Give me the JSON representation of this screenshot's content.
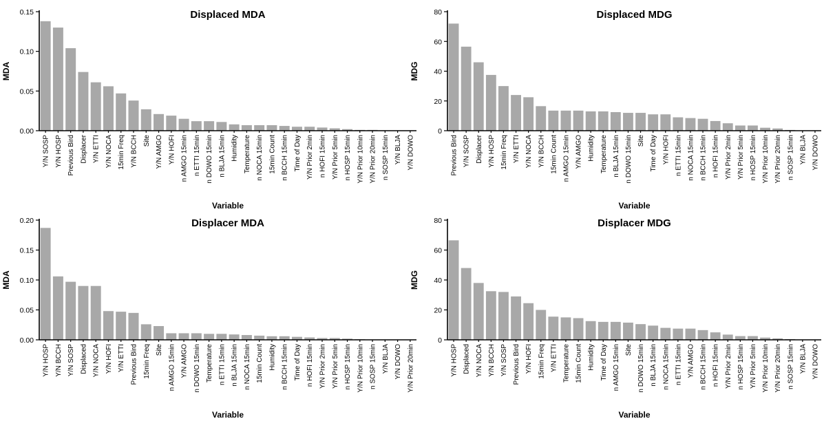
{
  "chart_data": [
    {
      "type": "bar",
      "title": "Displaced MDA",
      "xlabel": "Variable",
      "ylabel": "MDA",
      "ylim": [
        0,
        0.15
      ],
      "yticks": [
        "0.00",
        "0.05",
        "0.10",
        "0.15"
      ],
      "bar_color": "#a8a8a8",
      "grid": false,
      "categories": [
        "Y/N SOSP",
        "Y/N HOSP",
        "Previous Bird",
        "Displacer",
        "Y/N ETTI",
        "Y/N NOCA",
        "15min Freq",
        "Y/N BCCH",
        "Site",
        "Y/N AMGO",
        "Y/N HOFI",
        "n AMGO 15min",
        "n ETTI 15min",
        "n DOWO 15min",
        "n BLJA 15min",
        "Humidity",
        "Temperature",
        "n NOCA 15min",
        "15min Count",
        "n BCCH 15min",
        "Time of Day",
        "Y/N Prior 2min",
        "n HOFI 15min",
        "Y/N Prior 5min",
        "n HOSP 15min",
        "Y/N Prior 10min",
        "Y/N Prior 20min",
        "n SOSP 15min",
        "Y/N BLJA",
        "Y/N DOWO"
      ],
      "values": [
        0.138,
        0.13,
        0.104,
        0.074,
        0.061,
        0.056,
        0.047,
        0.038,
        0.027,
        0.021,
        0.019,
        0.015,
        0.012,
        0.012,
        0.011,
        0.008,
        0.007,
        0.007,
        0.007,
        0.006,
        0.005,
        0.005,
        0.004,
        0.003,
        0.002,
        0.001,
        0.001,
        0.0005,
        0.0,
        0.0
      ]
    },
    {
      "type": "bar",
      "title": "Displaced MDG",
      "xlabel": "Variable",
      "ylabel": "MDG",
      "ylim": [
        0,
        80
      ],
      "yticks": [
        "0",
        "20",
        "40",
        "60",
        "80"
      ],
      "bar_color": "#a8a8a8",
      "grid": false,
      "categories": [
        "Previous Bird",
        "Y/N SOSP",
        "Displacer",
        "Y/N HOSP",
        "15min Freq",
        "Y/N ETTI",
        "Y/N NOCA",
        "Y/N BCCH",
        "15min Count",
        "n AMGO 15min",
        "Y/N AMGO",
        "Humidity",
        "Temperature",
        "n BLJA 15min",
        "n DOWO 15min",
        "Site",
        "Time of Day",
        "Y/N HOFI",
        "n ETTI 15min",
        "n NOCA 15min",
        "n BCCH 15min",
        "n HOFI 15min",
        "Y/N Prior 2min",
        "Y/N Prior 5min",
        "n HOSP 15min",
        "Y/N Prior 10min",
        "Y/N Prior 20min",
        "n SOSP 15min",
        "Y/N BLJA",
        "Y/N DOWO"
      ],
      "values": [
        72,
        56.5,
        46,
        37.5,
        30,
        24,
        22.5,
        16.5,
        13.5,
        13.5,
        13.5,
        13,
        13,
        12.5,
        12,
        12,
        11,
        11,
        9,
        8.5,
        8,
        6.5,
        5,
        3.5,
        3.5,
        2,
        1.5,
        0.5,
        0,
        0
      ]
    },
    {
      "type": "bar",
      "title": "Displacer MDA",
      "xlabel": "Variable",
      "ylabel": "MDA",
      "ylim": [
        0,
        0.2
      ],
      "yticks": [
        "0.00",
        "0.05",
        "0.10",
        "0.15",
        "0.20"
      ],
      "bar_color": "#a8a8a8",
      "grid": false,
      "categories": [
        "Y/N HOSP",
        "Y/N BCCH",
        "Y/N SOSP",
        "Displaced",
        "Y/N NOCA",
        "Y/N HOFI",
        "Y/N ETTI",
        "Previous Bird",
        "15min Freq",
        "Site",
        "n AMGO 15min",
        "Y/N AMGO",
        "n DOWO 15min",
        "Temperature",
        "n ETTI 15min",
        "n BLJA 15min",
        "n NOCA 15min",
        "15min Count",
        "Humidity",
        "n BCCH 15min",
        "Time of Day",
        "n HOFI 15min",
        "Y/N Prior 2min",
        "Y/N Prior 5min",
        "n HOSP 15min",
        "Y/N Prior 10min",
        "n SOSP 15min",
        "Y/N BLJA",
        "Y/N DOWO",
        "Y/N Prior 20min"
      ],
      "values": [
        0.187,
        0.106,
        0.097,
        0.09,
        0.09,
        0.048,
        0.047,
        0.045,
        0.026,
        0.023,
        0.011,
        0.011,
        0.011,
        0.01,
        0.01,
        0.009,
        0.008,
        0.007,
        0.006,
        0.006,
        0.005,
        0.004,
        0.003,
        0.003,
        0.002,
        0.001,
        0.0005,
        0.0,
        0.0,
        0.0
      ]
    },
    {
      "type": "bar",
      "title": "Displacer MDG",
      "xlabel": "Variable",
      "ylabel": "MDG",
      "ylim": [
        0,
        80
      ],
      "yticks": [
        "0",
        "20",
        "40",
        "60",
        "80"
      ],
      "bar_color": "#a8a8a8",
      "grid": false,
      "categories": [
        "Y/N HOSP",
        "Displaced",
        "Y/N NOCA",
        "Y/N BCCH",
        "Y/N SOSP",
        "Previous Bird",
        "Y/N HOFI",
        "15min Freq",
        "Y/N ETTI",
        "Temperature",
        "15min Count",
        "Humidity",
        "Time of Day",
        "n AMGO 15min",
        "Site",
        "n DOWO 15min",
        "n BLJA 15min",
        "n NOCA 15min",
        "n ETTI 15min",
        "Y/N AMGO",
        "n BCCH 15min",
        "n HOFI 15min",
        "Y/N Prior 2min",
        "n HOSP 15min",
        "Y/N Prior 5min",
        "Y/N Prior 10min",
        "Y/N Prior 20min",
        "n SOSP 15min",
        "Y/N BLJA",
        "Y/N DOWO"
      ],
      "values": [
        66.5,
        48,
        38,
        32.5,
        32,
        29,
        24.5,
        20,
        15.5,
        15,
        14.5,
        12.5,
        12,
        12,
        11.5,
        10.5,
        9.5,
        8,
        7.5,
        7.5,
        6.5,
        5,
        3.5,
        2.5,
        2.5,
        1.5,
        1,
        0.5,
        0,
        0
      ]
    }
  ]
}
